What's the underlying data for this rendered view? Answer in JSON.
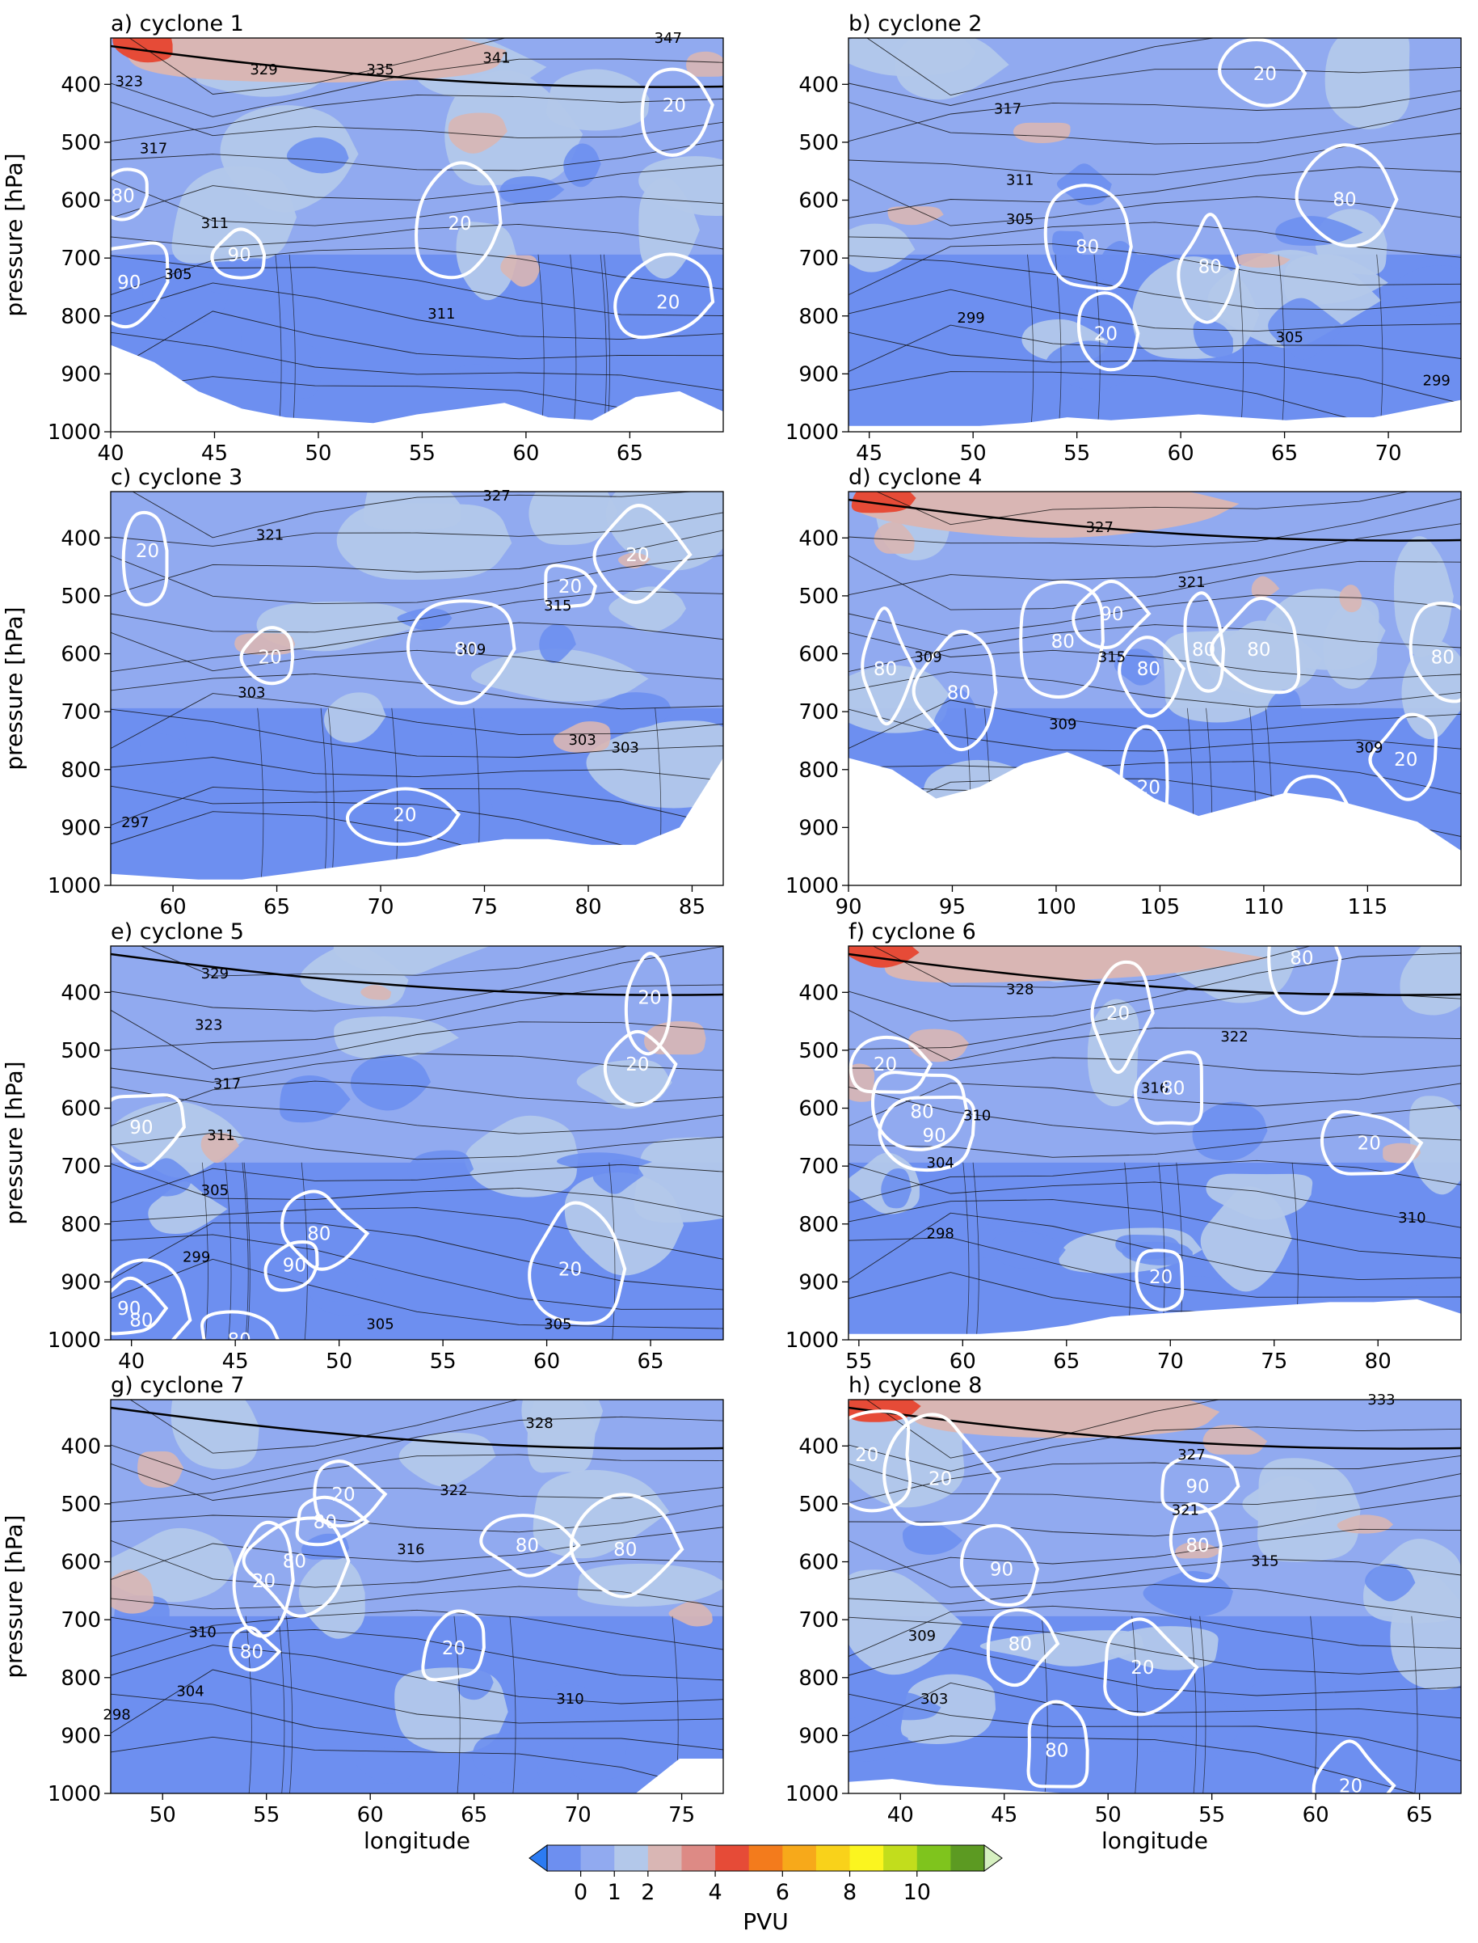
{
  "chart_data": [
    {
      "type": "heatmap",
      "title": "a) cyclone 1",
      "xlim": [
        40,
        69.5
      ],
      "ylim": [
        1000,
        320
      ],
      "xticks": [
        40,
        45,
        50,
        55,
        60,
        65
      ],
      "yticks": [
        400,
        500,
        600,
        700,
        800,
        900,
        1000
      ],
      "ylabel": "pressure [hPa]",
      "xlabel": "",
      "theta_labels": [
        "323",
        "329",
        "335",
        "341",
        "347",
        "317",
        "311",
        "305",
        "311"
      ],
      "rh_labels": [
        "80",
        "90",
        "90",
        "20",
        "20",
        "20"
      ],
      "terrain_top_hPa": [
        850,
        880,
        930,
        960,
        975,
        980,
        985,
        970,
        960,
        950,
        975,
        980,
        940,
        930,
        965
      ]
    },
    {
      "type": "heatmap",
      "title": "b) cyclone 2",
      "xlim": [
        44,
        73.5
      ],
      "ylim": [
        1000,
        320
      ],
      "xticks": [
        45,
        50,
        55,
        60,
        65,
        70
      ],
      "yticks": [
        400,
        500,
        600,
        700,
        800,
        900,
        1000
      ],
      "ylabel": "",
      "xlabel": "",
      "theta_labels": [
        "317",
        "311",
        "305",
        "299",
        "305",
        "299"
      ],
      "rh_labels": [
        "20",
        "80",
        "80",
        "80",
        "20"
      ],
      "terrain_top_hPa": [
        990,
        990,
        990,
        990,
        985,
        975,
        980,
        975,
        970,
        975,
        980,
        975,
        975,
        960,
        945
      ]
    },
    {
      "type": "heatmap",
      "title": "c) cyclone 3",
      "xlim": [
        57,
        86.5
      ],
      "ylim": [
        1000,
        320
      ],
      "xticks": [
        60,
        65,
        70,
        75,
        80,
        85
      ],
      "yticks": [
        400,
        500,
        600,
        700,
        800,
        900,
        1000
      ],
      "ylabel": "pressure [hPa]",
      "xlabel": "",
      "theta_labels": [
        "327",
        "321",
        "315",
        "309",
        "303",
        "303",
        "303",
        "297"
      ],
      "rh_labels": [
        "20",
        "20",
        "20",
        "80",
        "20",
        "20"
      ],
      "terrain_top_hPa": [
        980,
        985,
        990,
        990,
        980,
        970,
        960,
        950,
        930,
        920,
        920,
        930,
        930,
        900,
        780
      ]
    },
    {
      "type": "heatmap",
      "title": "d) cyclone 4",
      "xlim": [
        90,
        119.5
      ],
      "ylim": [
        1000,
        320
      ],
      "xticks": [
        90,
        95,
        100,
        105,
        110,
        115
      ],
      "yticks": [
        400,
        500,
        600,
        700,
        800,
        900,
        1000
      ],
      "ylabel": "",
      "xlabel": "",
      "theta_labels": [
        "327",
        "321",
        "309",
        "315",
        "309",
        "309"
      ],
      "rh_labels": [
        "80",
        "80",
        "80",
        "90",
        "80",
        "80",
        "80",
        "20",
        "20",
        "20",
        "80"
      ],
      "terrain_top_hPa": [
        780,
        800,
        850,
        830,
        790,
        770,
        800,
        850,
        880,
        860,
        840,
        850,
        870,
        890,
        940
      ]
    },
    {
      "type": "heatmap",
      "title": "e) cyclone 5",
      "xlim": [
        39,
        68.5
      ],
      "ylim": [
        1000,
        320
      ],
      "xticks": [
        40,
        45,
        50,
        55,
        60,
        65
      ],
      "yticks": [
        400,
        500,
        600,
        700,
        800,
        900,
        1000
      ],
      "ylabel": "pressure [hPa]",
      "xlabel": "",
      "theta_labels": [
        "329",
        "323",
        "317",
        "311",
        "305",
        "299",
        "305",
        "305"
      ],
      "rh_labels": [
        "90",
        "90",
        "80",
        "90",
        "80",
        "80",
        "20",
        "20",
        "20"
      ],
      "terrain_top_hPa": [
        1000,
        1000,
        1000,
        1000,
        1000,
        1000,
        1000,
        1000,
        1000,
        1000,
        1000,
        1000,
        1000,
        1000,
        1000
      ]
    },
    {
      "type": "heatmap",
      "title": "f) cyclone 6",
      "xlim": [
        54.5,
        84
      ],
      "ylim": [
        1000,
        320
      ],
      "xticks": [
        55,
        60,
        65,
        70,
        75,
        80
      ],
      "yticks": [
        400,
        500,
        600,
        700,
        800,
        900,
        1000
      ],
      "ylabel": "",
      "xlabel": "",
      "theta_labels": [
        "328",
        "322",
        "316",
        "310",
        "304",
        "298",
        "310"
      ],
      "rh_labels": [
        "20",
        "20",
        "80",
        "90",
        "80",
        "20",
        "20",
        "80"
      ],
      "terrain_top_hPa": [
        990,
        990,
        990,
        990,
        985,
        975,
        960,
        955,
        950,
        945,
        940,
        935,
        935,
        930,
        955
      ]
    },
    {
      "type": "heatmap",
      "title": "g) cyclone 7",
      "xlim": [
        47.5,
        77
      ],
      "ylim": [
        1000,
        320
      ],
      "xticks": [
        50,
        55,
        60,
        65,
        70,
        75
      ],
      "yticks": [
        400,
        500,
        600,
        700,
        800,
        900,
        1000
      ],
      "ylabel": "pressure [hPa]",
      "xlabel": "longitude",
      "theta_labels": [
        "328",
        "322",
        "316",
        "310",
        "304",
        "298",
        "310"
      ],
      "rh_labels": [
        "20",
        "20",
        "80",
        "80",
        "80",
        "80",
        "20",
        "80"
      ],
      "terrain_top_hPa": [
        1000,
        1000,
        1000,
        1000,
        1000,
        1000,
        1000,
        1000,
        1000,
        1000,
        1000,
        1000,
        1000,
        940,
        940
      ]
    },
    {
      "type": "heatmap",
      "title": "h) cyclone 8",
      "xlim": [
        37.5,
        67
      ],
      "ylim": [
        1000,
        320
      ],
      "xticks": [
        40,
        45,
        50,
        55,
        60,
        65
      ],
      "yticks": [
        400,
        500,
        600,
        700,
        800,
        900,
        1000
      ],
      "ylabel": "",
      "xlabel": "longitude",
      "theta_labels": [
        "333",
        "327",
        "321",
        "315",
        "309",
        "303"
      ],
      "rh_labels": [
        "20",
        "20",
        "90",
        "80",
        "90",
        "80",
        "80",
        "20",
        "20"
      ],
      "terrain_top_hPa": [
        980,
        975,
        985,
        990,
        995,
        1000,
        1000,
        1000,
        1000,
        1000,
        1000,
        1000,
        1000,
        1000,
        1000
      ]
    }
  ],
  "colorbar": {
    "label": "PVU",
    "ticks": [
      "0",
      "1",
      "2",
      "4",
      "6",
      "8",
      "10"
    ],
    "tick_positions": [
      1,
      2,
      3,
      5,
      7,
      9,
      11
    ],
    "n_bins": 13,
    "colors": [
      "#2c7bf2",
      "#6d8ff0",
      "#91aaf0",
      "#b3c8ea",
      "#d9b6b4",
      "#dd8a85",
      "#e64b37",
      "#f37b1c",
      "#f7a91a",
      "#f9d21a",
      "#fbf51f",
      "#c2dd1c",
      "#7fc41d",
      "#5c9a22",
      "#1e8a21",
      "#d6f0c0"
    ]
  },
  "pv_colors": {
    "neg": "#2c7bf2",
    "pv0": "#6d8ff0",
    "pv05": "#91aaf0",
    "pv1": "#b3c8ea",
    "pv15": "#d9b6b4",
    "pv2": "#dd8a85",
    "pv4": "#e64b37",
    "pv6": "#f37b1c"
  }
}
